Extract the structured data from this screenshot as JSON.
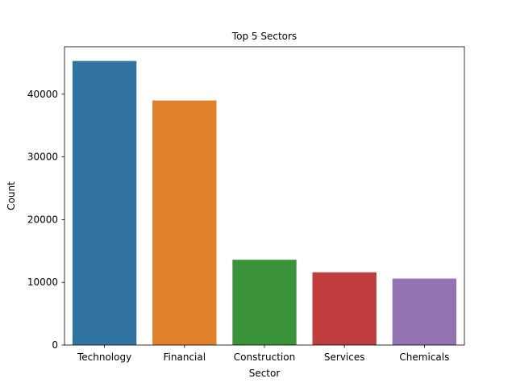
{
  "chart_data": {
    "type": "bar",
    "title": "Top 5 Sectors",
    "xlabel": "Sector",
    "ylabel": "Count",
    "categories": [
      "Technology",
      "Financial",
      "Construction",
      "Services",
      "Chemicals"
    ],
    "values": [
      45300,
      39000,
      13600,
      11600,
      10600
    ],
    "colors": [
      "#3274a1",
      "#e1812c",
      "#3a923a",
      "#c03d3e",
      "#9372b2"
    ],
    "ylim": [
      0,
      47565
    ],
    "yticks": [
      0,
      10000,
      20000,
      30000,
      40000
    ],
    "grid": false,
    "legend": "none"
  }
}
